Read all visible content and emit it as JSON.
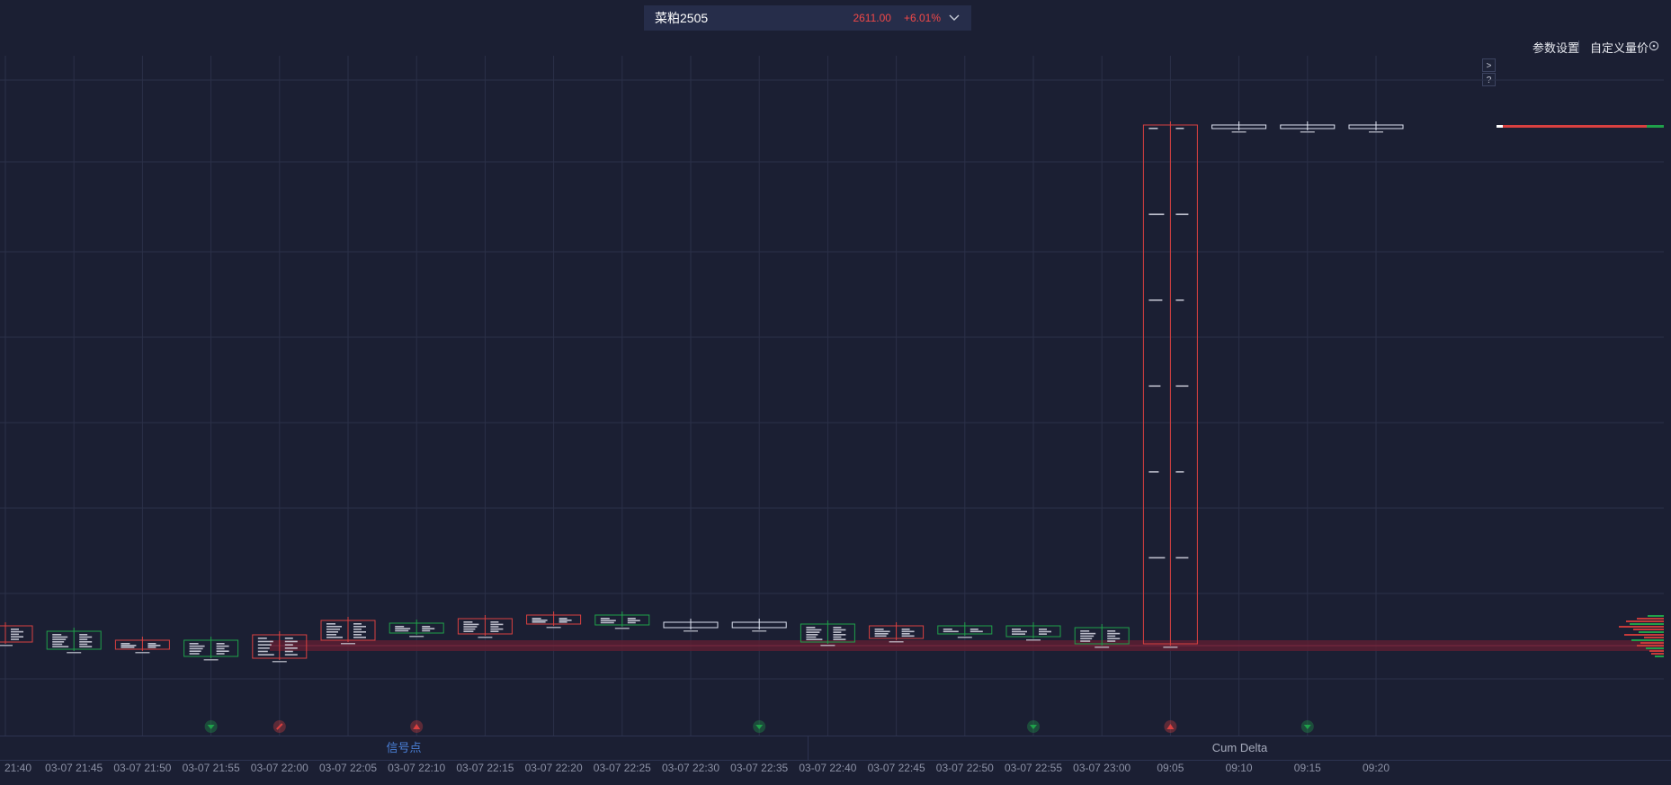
{
  "header": {
    "symbol": "菜粕2505",
    "price": "2611.00",
    "change_pct": "+6.01%"
  },
  "toolbar": {
    "settings_label": "参数设置",
    "custom_label": "自定义量价"
  },
  "side_buttons": {
    "expand": ">",
    "help": "?"
  },
  "tabs": {
    "signal": "信号点",
    "cum_delta": "Cum Delta"
  },
  "time_axis": [
    "21:40",
    "03-07 21:45",
    "03-07 21:50",
    "03-07 21:55",
    "03-07 22:00",
    "03-07 22:05",
    "03-07 22:10",
    "03-07 22:15",
    "03-07 22:20",
    "03-07 22:25",
    "03-07 22:30",
    "03-07 22:35",
    "03-07 22:40",
    "03-07 22:45",
    "03-07 22:50",
    "03-07 22:55",
    "03-07 23:00",
    "09:05",
    "09:10",
    "09:15",
    "09:20"
  ],
  "signals": [
    {
      "index": 3,
      "type": "down",
      "color": "#1fa04a"
    },
    {
      "index": 4,
      "type": "diag",
      "color": "#d94040"
    },
    {
      "index": 6,
      "type": "up",
      "color": "#d94040"
    },
    {
      "index": 11,
      "type": "down",
      "color": "#1fa04a"
    },
    {
      "index": 15,
      "type": "down",
      "color": "#1fa04a"
    },
    {
      "index": 17,
      "type": "up",
      "color": "#d94040"
    },
    {
      "index": 19,
      "type": "down",
      "color": "#1fa04a"
    }
  ],
  "colors": {
    "background": "#1b1f33",
    "up": "#d94040",
    "down": "#1fa04a",
    "neutral": "#dde2f0",
    "accent": "#4a7fd6"
  }
}
